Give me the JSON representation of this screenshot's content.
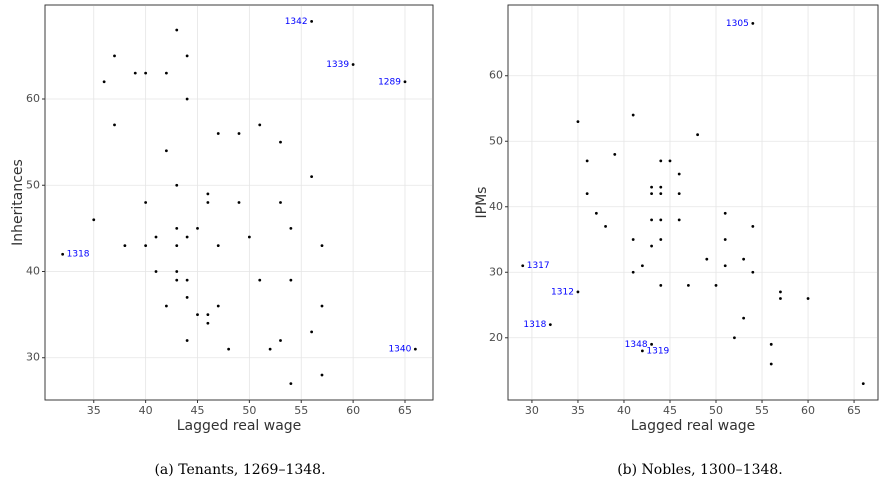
{
  "chart_data": [
    {
      "type": "scatter",
      "xlabel": "Lagged real wage",
      "ylabel": "Inheritances",
      "caption": "(a)  Tenants, 1269–1348.",
      "color": "#000000",
      "label_color": "#0000ff",
      "grid": true,
      "xlim": [
        30.3,
        67.7
      ],
      "ylim": [
        25.1,
        70.9
      ],
      "xticks": [
        35,
        40,
        45,
        50,
        55,
        60,
        65
      ],
      "yticks": [
        30,
        40,
        50,
        60
      ],
      "x": [
        43,
        56,
        37,
        44,
        39,
        40,
        42,
        36,
        60,
        65,
        44,
        37,
        51,
        47,
        49,
        53,
        42,
        56,
        43,
        46,
        46,
        40,
        49,
        53,
        35,
        43,
        45,
        54,
        41,
        44,
        50,
        38,
        40,
        43,
        47,
        57,
        32,
        41,
        43,
        43,
        44,
        51,
        54,
        44,
        42,
        47,
        57,
        45,
        46,
        46,
        56,
        44,
        53,
        48,
        52,
        66,
        57,
        54
      ],
      "values": [
        68,
        69,
        65,
        65,
        63,
        63,
        63,
        62,
        64,
        62,
        60,
        57,
        57,
        56,
        56,
        55,
        54,
        51,
        50,
        49,
        48,
        48,
        48,
        48,
        46,
        45,
        45,
        45,
        44,
        44,
        44,
        43,
        43,
        43,
        43,
        43,
        42,
        40,
        40,
        39,
        39,
        39,
        39,
        37,
        36,
        36,
        36,
        35,
        35,
        34,
        33,
        32,
        32,
        31,
        31,
        31,
        28,
        27
      ],
      "point_labels": [
        null,
        "1342",
        null,
        null,
        null,
        null,
        null,
        null,
        "1339",
        "1289",
        null,
        null,
        null,
        null,
        null,
        null,
        null,
        null,
        null,
        null,
        null,
        null,
        null,
        null,
        null,
        null,
        null,
        null,
        null,
        null,
        null,
        null,
        null,
        null,
        null,
        null,
        "1318",
        null,
        null,
        null,
        null,
        null,
        null,
        null,
        null,
        null,
        null,
        null,
        null,
        null,
        null,
        null,
        null,
        null,
        null,
        "1340",
        null,
        null
      ]
    },
    {
      "type": "scatter",
      "xlabel": "Lagged real wage",
      "ylabel": "IPMs",
      "caption": "(b)  Nobles, 1300–1348.",
      "color": "#000000",
      "label_color": "#0000ff",
      "grid": true,
      "xlim": [
        27.4,
        67.6
      ],
      "ylim": [
        10.5,
        70.8
      ],
      "xticks": [
        30,
        35,
        40,
        45,
        50,
        55,
        60,
        65
      ],
      "yticks": [
        20,
        30,
        40,
        50,
        60
      ],
      "x": [
        54,
        41,
        35,
        48,
        39,
        36,
        44,
        45,
        46,
        43,
        44,
        36,
        43,
        44,
        46,
        51,
        37,
        43,
        44,
        46,
        38,
        54,
        41,
        44,
        51,
        43,
        49,
        53,
        29,
        42,
        51,
        41,
        54,
        44,
        47,
        50,
        35,
        57,
        57,
        60,
        53,
        32,
        52,
        43,
        56,
        42,
        56,
        66
      ],
      "values": [
        68,
        54,
        53,
        51,
        48,
        47,
        47,
        47,
        45,
        43,
        43,
        42,
        42,
        42,
        42,
        39,
        39,
        38,
        38,
        38,
        37,
        37,
        35,
        35,
        35,
        34,
        32,
        32,
        31,
        31,
        31,
        30,
        30,
        28,
        28,
        28,
        27,
        27,
        26,
        26,
        23,
        22,
        20,
        19,
        19,
        18,
        16,
        13
      ],
      "point_labels": [
        "1305",
        null,
        null,
        null,
        null,
        null,
        null,
        null,
        null,
        null,
        null,
        null,
        null,
        null,
        null,
        null,
        null,
        null,
        null,
        null,
        null,
        null,
        null,
        null,
        null,
        null,
        null,
        null,
        "1317",
        null,
        null,
        null,
        null,
        null,
        null,
        null,
        "1312",
        null,
        null,
        null,
        null,
        "1318",
        null,
        "1348",
        null,
        "1319",
        null,
        null
      ]
    }
  ]
}
